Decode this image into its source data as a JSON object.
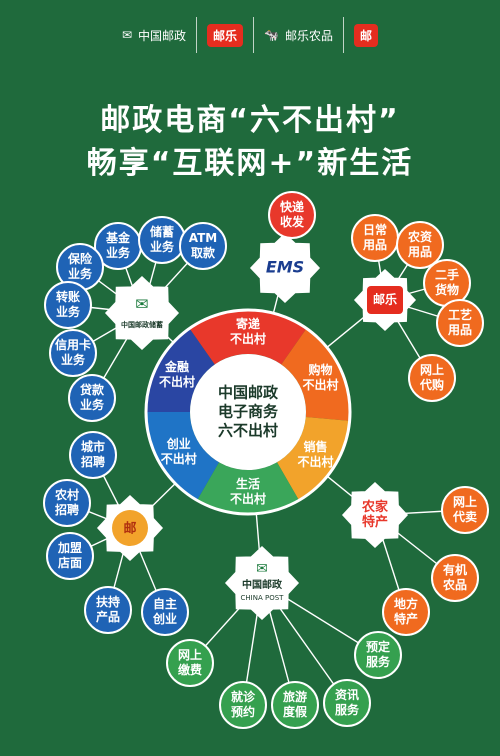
{
  "header": {
    "logos": [
      "中国邮政",
      "邮乐",
      "邮乐农品"
    ],
    "title_line1": "邮政电商“六不出村”",
    "title_line2": "畅享“互联网+”新生活"
  },
  "center": {
    "title_lines": [
      "中国邮政",
      "电子商务",
      "六不出村"
    ]
  },
  "segments": [
    {
      "label": [
        "寄递",
        "不出村"
      ],
      "color": "#e8382b"
    },
    {
      "label": [
        "购物",
        "不出村"
      ],
      "color": "#f06a1f"
    },
    {
      "label": [
        "销售",
        "不出村"
      ],
      "color": "#f2a32b"
    },
    {
      "label": [
        "生活",
        "不出村"
      ],
      "color": "#3aa65a"
    },
    {
      "label": [
        "创业",
        "不出村"
      ],
      "color": "#1f74c6"
    },
    {
      "label": [
        "金融",
        "不出村"
      ],
      "color": "#2a46a3"
    }
  ],
  "hubs": {
    "ems": "EMS",
    "post_savings": "中国邮政储蓄",
    "youle": "邮乐",
    "farm": "农家特产",
    "china_post": "中国邮政",
    "china_post_en": "CHINA POST",
    "startup_icon": "money-bag-icon"
  },
  "leaves": {
    "ems": [
      "快递收发"
    ],
    "savings": [
      "基金业务",
      "储蓄业务",
      "ATM取款",
      "保险业务",
      "转账业务",
      "信用卡业务",
      "贷款业务"
    ],
    "youle": [
      "日常用品",
      "农资用品",
      "二手货物",
      "工艺用品",
      "网上代购"
    ],
    "farm": [
      "网上代卖",
      "有机农品",
      "地方特产"
    ],
    "life": [
      "网上缴费",
      "就诊预约",
      "旅游度假",
      "资讯服务",
      "预定服务"
    ],
    "startup": [
      "城市招聘",
      "农村招聘",
      "加盟店面",
      "扶持产品",
      "自主创业"
    ]
  },
  "colors": {
    "background": "#1f6a3c",
    "red": "#e8382b",
    "orange": "#f06a1f",
    "blue": "#1f63b5",
    "green": "#35a04f"
  }
}
